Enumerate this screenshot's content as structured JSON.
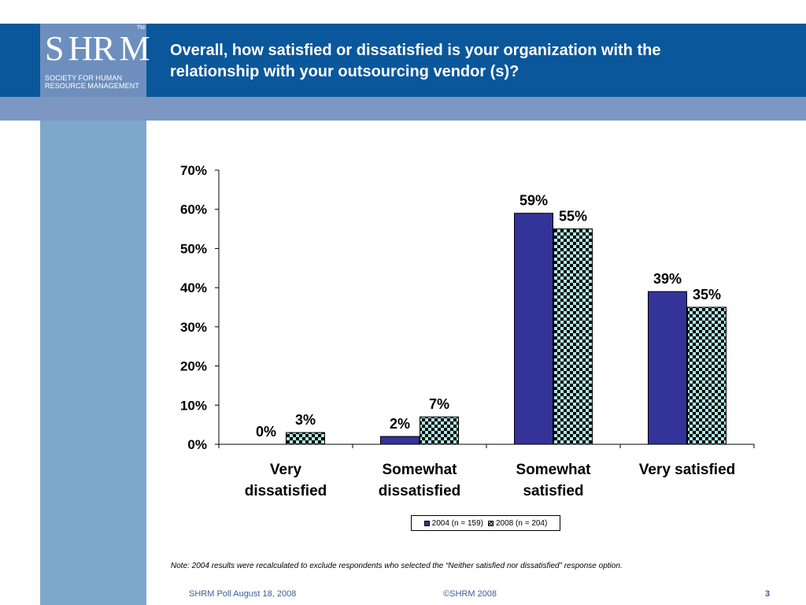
{
  "header": {
    "logo_letters": [
      "S",
      "H",
      "R",
      "M"
    ],
    "logo_tm": "TM",
    "logo_sub_line1": "SOCIETY FOR HUMAN",
    "logo_sub_line2": "RESOURCE MANAGEMENT",
    "title_line1": "Overall, how satisfied or dissatisfied is your organization with the",
    "title_line2": "relationship with your outsourcing vendor (s)?"
  },
  "colors": {
    "header_band": "#0a579b",
    "sub_band": "#7b97c2",
    "left_column": "#7ea7cc",
    "series_2004": "#333399",
    "series_2008_fill": "#aee6e1",
    "footer_text": "#3a5f9a"
  },
  "chart_data": {
    "type": "bar",
    "categories": [
      [
        "Very",
        "dissatisfied"
      ],
      [
        "Somewhat",
        "dissatisfied"
      ],
      [
        "Somewhat",
        "satisfied"
      ],
      [
        "Very satisfied"
      ]
    ],
    "series": [
      {
        "name": "2004 (n = 159)",
        "values": [
          0,
          2,
          59,
          39
        ],
        "labels": [
          "0%",
          "2%",
          "59%",
          "39%"
        ],
        "pattern": "solid"
      },
      {
        "name": "2008 (n = 204)",
        "values": [
          3,
          7,
          55,
          35
        ],
        "labels": [
          "3%",
          "7%",
          "55%",
          "35%"
        ],
        "pattern": "checkered"
      }
    ],
    "yticks": [
      "0%",
      "10%",
      "20%",
      "30%",
      "40%",
      "50%",
      "60%",
      "70%"
    ],
    "ylim": [
      0,
      70
    ],
    "grid": false,
    "legend_position": "bottom"
  },
  "note": "Note:  2004 results were recalculated to exclude respondents who selected the “Neither satisfied nor dissatisfied” response option.",
  "footer": {
    "left": "SHRM Poll August 18, 2008",
    "center": "©SHRM 2008",
    "page": "3"
  }
}
